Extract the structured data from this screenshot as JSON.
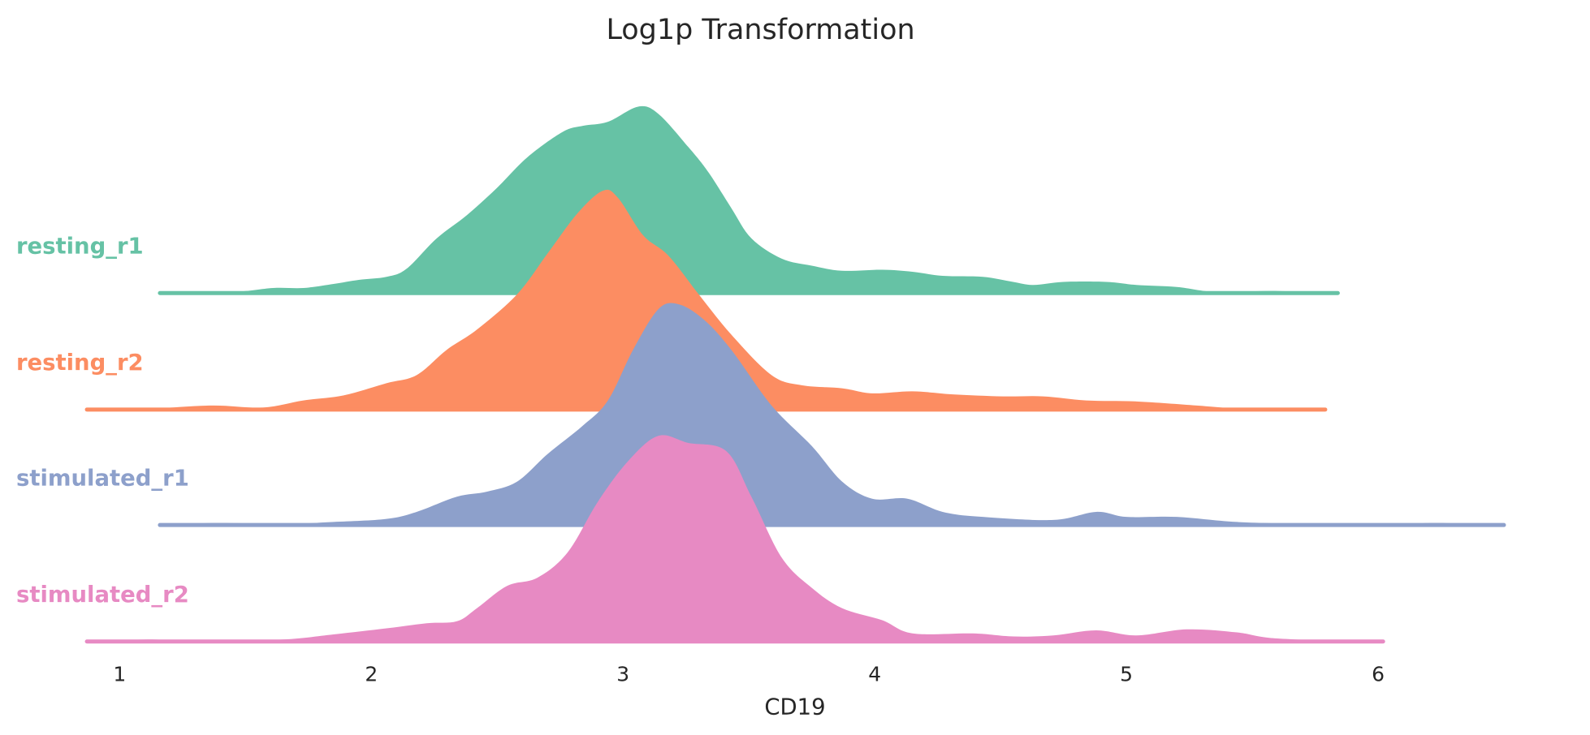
{
  "chart_data": {
    "type": "area",
    "subtype": "ridgeline",
    "title": "Log1p Transformation",
    "xlabel": "CD19",
    "ylabel": "",
    "xlim": [
      0.87,
      6.5
    ],
    "xticks": [
      "1",
      "2",
      "3",
      "4",
      "5",
      "6"
    ],
    "grid": false,
    "series": [
      {
        "name": "resting_r1",
        "color": "#66c2a5",
        "x": [
          1.16,
          1.45,
          1.61,
          1.73,
          1.85,
          1.95,
          2.06,
          2.14,
          2.26,
          2.38,
          2.5,
          2.62,
          2.76,
          2.84,
          2.94,
          3.06,
          3.14,
          3.26,
          3.34,
          3.43,
          3.51,
          3.63,
          3.75,
          3.87,
          4.03,
          4.15,
          4.27,
          4.43,
          4.55,
          4.63,
          4.75,
          4.92,
          5.04,
          5.2,
          5.36,
          5.6,
          5.84
        ],
        "density": [
          0,
          0.02,
          0.06,
          0.06,
          0.1,
          0.14,
          0.17,
          0.25,
          0.55,
          0.78,
          1.05,
          1.35,
          1.6,
          1.66,
          1.7,
          1.85,
          1.78,
          1.45,
          1.2,
          0.85,
          0.55,
          0.35,
          0.28,
          0.23,
          0.24,
          0.22,
          0.18,
          0.17,
          0.12,
          0.09,
          0.12,
          0.12,
          0.09,
          0.07,
          0.02,
          0.03,
          0
        ]
      },
      {
        "name": "resting_r2",
        "color": "#fc8d62",
        "x": [
          0.87,
          1.13,
          1.37,
          1.57,
          1.73,
          1.89,
          2.06,
          2.18,
          2.3,
          2.42,
          2.58,
          2.7,
          2.82,
          2.92,
          2.98,
          3.08,
          3.18,
          3.3,
          3.43,
          3.59,
          3.71,
          3.87,
          3.99,
          4.15,
          4.31,
          4.51,
          4.67,
          4.84,
          5.04,
          5.28,
          5.44,
          5.6,
          5.79
        ],
        "density": [
          0,
          0.02,
          0.05,
          0.03,
          0.1,
          0.15,
          0.27,
          0.35,
          0.6,
          0.8,
          1.15,
          1.55,
          1.95,
          2.17,
          2.1,
          1.73,
          1.53,
          1.15,
          0.75,
          0.35,
          0.25,
          0.22,
          0.17,
          0.19,
          0.16,
          0.14,
          0.14,
          0.1,
          0.09,
          0.05,
          0.02,
          0.02,
          0
        ]
      },
      {
        "name": "stimulated_r1",
        "color": "#8da0cb",
        "x": [
          1.16,
          1.37,
          1.65,
          1.85,
          2.06,
          2.18,
          2.34,
          2.46,
          2.58,
          2.7,
          2.84,
          2.94,
          3.04,
          3.14,
          3.22,
          3.32,
          3.43,
          3.59,
          3.75,
          3.87,
          3.99,
          4.13,
          4.27,
          4.43,
          4.71,
          4.88,
          5.0,
          5.2,
          5.44,
          5.76,
          6.08,
          6.25,
          6.5
        ],
        "density": [
          0,
          0.03,
          0.02,
          0.04,
          0.07,
          0.14,
          0.29,
          0.34,
          0.44,
          0.71,
          0.99,
          1.24,
          1.74,
          2.14,
          2.19,
          2.04,
          1.74,
          1.19,
          0.79,
          0.44,
          0.27,
          0.27,
          0.14,
          0.09,
          0.06,
          0.14,
          0.09,
          0.09,
          0.04,
          0.02,
          0.02,
          0.03,
          0
        ]
      },
      {
        "name": "stimulated_r2",
        "color": "#e78ac3",
        "x": [
          0.87,
          1.11,
          1.33,
          1.65,
          1.85,
          2.06,
          2.22,
          2.34,
          2.42,
          2.54,
          2.66,
          2.78,
          2.9,
          3.02,
          3.14,
          3.26,
          3.41,
          3.51,
          3.63,
          3.75,
          3.87,
          4.03,
          4.15,
          4.39,
          4.55,
          4.71,
          4.88,
          5.04,
          5.24,
          5.44,
          5.6,
          6.02
        ],
        "density": [
          0,
          0.03,
          0.01,
          0.03,
          0.08,
          0.14,
          0.19,
          0.21,
          0.34,
          0.56,
          0.64,
          0.89,
          1.39,
          1.79,
          2.04,
          1.97,
          1.89,
          1.44,
          0.84,
          0.54,
          0.34,
          0.22,
          0.09,
          0.09,
          0.06,
          0.07,
          0.12,
          0.07,
          0.13,
          0.1,
          0.04,
          0
        ]
      }
    ]
  }
}
